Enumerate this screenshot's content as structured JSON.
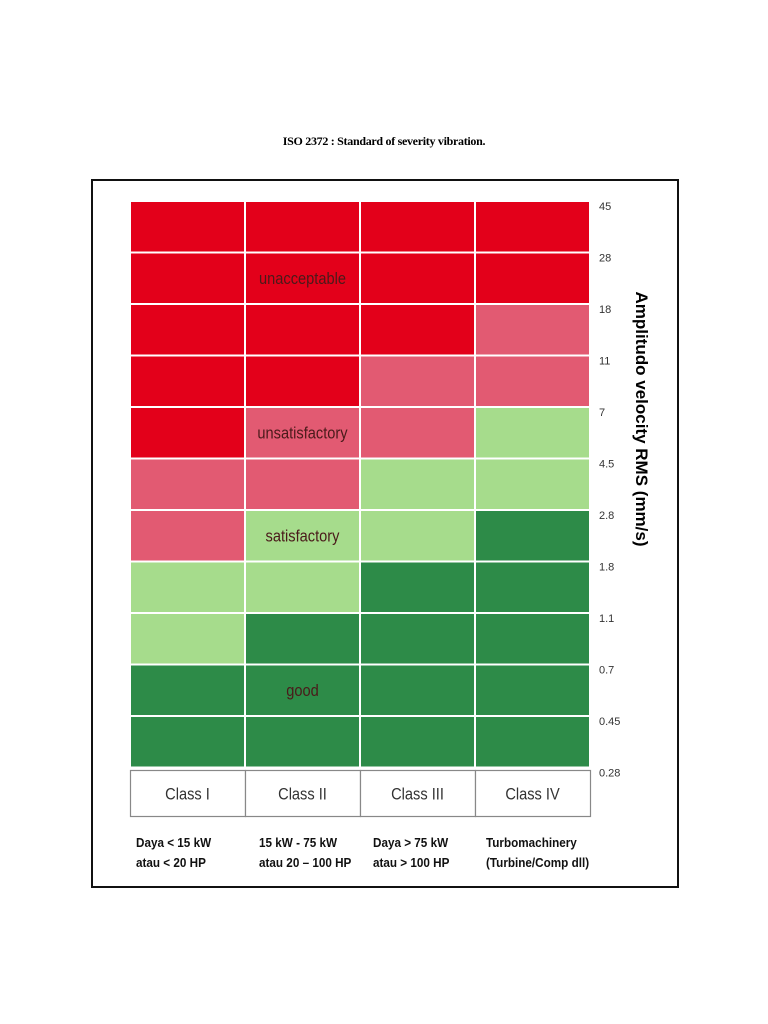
{
  "document": {
    "title": "ISO 2372 : Standard of severity vibration."
  },
  "colors": {
    "unacceptable": "#e3001a",
    "unsatisfactory": "#e25a72",
    "satisfactory": "#a6dc8c",
    "good": "#2d8b48"
  },
  "chart_data": {
    "type": "heatmap",
    "title": "ISO 2372 : Standard of severity vibration.",
    "ylabel": "Amplitudo velocity RMS (mm/s)",
    "y_ticks": [
      "45",
      "28",
      "18",
      "11",
      "7",
      "4.5",
      "2.8",
      "1.8",
      "1.1",
      "0.7",
      "0.45",
      "0.28"
    ],
    "classes": [
      "Class I",
      "Class II",
      "Class III",
      "Class IV"
    ],
    "class_descriptions": [
      [
        "Daya < 15 kW",
        "atau < 20 HP"
      ],
      [
        "15 kW - 75 kW",
        "atau 20 – 100 HP"
      ],
      [
        "Daya > 75 kW",
        "atau > 100 HP"
      ],
      [
        "Turbomachinery",
        "(Turbine/Comp dll)"
      ]
    ],
    "rating_labels": [
      "unacceptable",
      "unsatisfactory",
      "satisfactory",
      "good"
    ],
    "zones": [
      [
        "unacceptable",
        "unacceptable",
        "unacceptable",
        "unacceptable"
      ],
      [
        "unacceptable",
        "unacceptable",
        "unacceptable",
        "unacceptable"
      ],
      [
        "unacceptable",
        "unacceptable",
        "unacceptable",
        "unsatisfactory"
      ],
      [
        "unacceptable",
        "unacceptable",
        "unsatisfactory",
        "unsatisfactory"
      ],
      [
        "unacceptable",
        "unsatisfactory",
        "unsatisfactory",
        "satisfactory"
      ],
      [
        "unsatisfactory",
        "unsatisfactory",
        "satisfactory",
        "satisfactory"
      ],
      [
        "unsatisfactory",
        "satisfactory",
        "satisfactory",
        "good"
      ],
      [
        "satisfactory",
        "satisfactory",
        "good",
        "good"
      ],
      [
        "satisfactory",
        "good",
        "good",
        "good"
      ],
      [
        "good",
        "good",
        "good",
        "good"
      ],
      [
        "good",
        "good",
        "good",
        "good"
      ]
    ]
  }
}
